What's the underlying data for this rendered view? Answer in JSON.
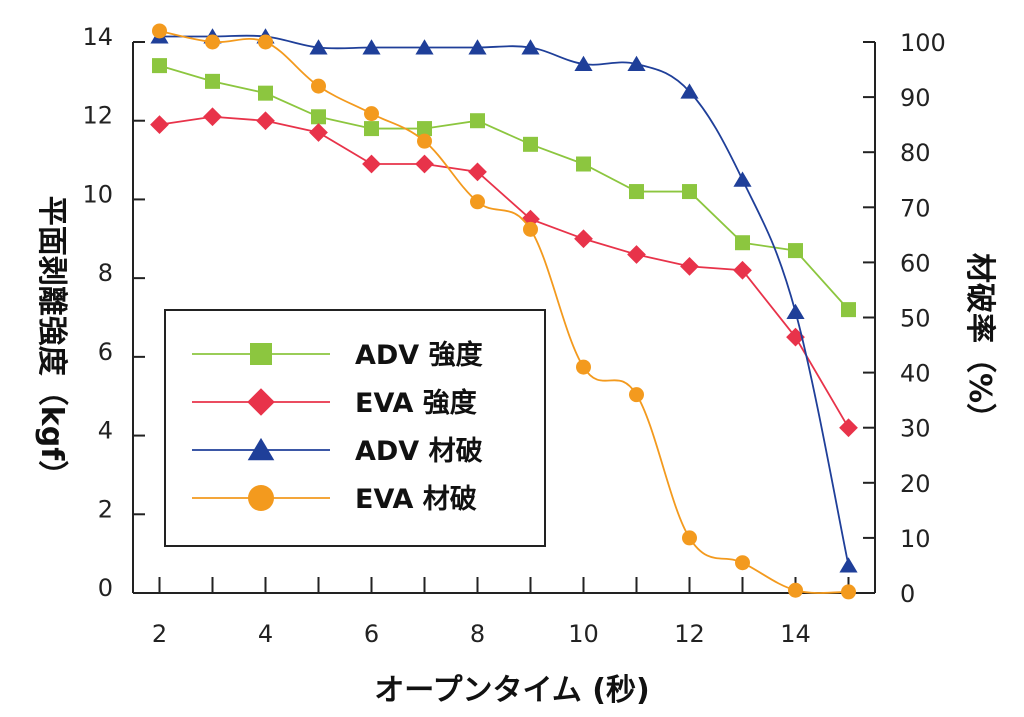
{
  "chart_data": {
    "type": "line",
    "xlabel": "オープンタイム (秒)",
    "ylabel_left": "平面剥離強度（kgf）",
    "ylabel_right": "材破率（%）",
    "xlim": [
      1.5,
      15.5
    ],
    "ylim_left": [
      0,
      14
    ],
    "ylim_right": [
      0,
      100
    ],
    "x_ticks": [
      "2",
      "4",
      "6",
      "8",
      "10",
      "12",
      "14"
    ],
    "y_left_ticks": [
      "0",
      "2",
      "4",
      "6",
      "8",
      "10",
      "12",
      "14"
    ],
    "y_right_ticks": [
      "0",
      "10",
      "20",
      "30",
      "40",
      "50",
      "60",
      "70",
      "80",
      "90",
      "100"
    ],
    "grid": false,
    "legend_position": "inside-left",
    "series": [
      {
        "name": "ADV 強度",
        "axis": "left",
        "color": "#8cc63f",
        "marker": "square",
        "x": [
          2,
          3,
          4,
          5,
          6,
          7,
          8,
          9,
          10,
          11,
          12,
          13,
          14,
          15
        ],
        "y": [
          13.4,
          13.0,
          12.7,
          12.1,
          11.8,
          11.8,
          12.0,
          11.4,
          10.9,
          10.2,
          10.2,
          8.9,
          8.7,
          7.2
        ]
      },
      {
        "name": "EVA 強度",
        "axis": "left",
        "color": "#e8334a",
        "marker": "diamond",
        "x": [
          2,
          3,
          4,
          5,
          6,
          7,
          8,
          9,
          10,
          11,
          12,
          13,
          14,
          15
        ],
        "y": [
          11.9,
          12.1,
          12.0,
          11.7,
          10.9,
          10.9,
          10.7,
          9.5,
          9.0,
          8.6,
          8.3,
          8.2,
          6.5,
          4.2
        ]
      },
      {
        "name": "ADV 材破",
        "axis": "right",
        "color": "#1f3f99",
        "marker": "triangle",
        "x": [
          2,
          3,
          4,
          5,
          6,
          7,
          8,
          9,
          10,
          11,
          12,
          13,
          14,
          15
        ],
        "y": [
          101,
          101,
          101,
          99,
          99,
          99,
          99,
          99,
          96,
          96,
          91,
          75,
          51,
          5
        ]
      },
      {
        "name": "EVA 材破",
        "axis": "right",
        "color": "#f39a1e",
        "marker": "circle",
        "x": [
          2,
          3,
          4,
          5,
          6,
          7,
          8,
          9,
          10,
          11,
          12,
          13,
          14,
          15
        ],
        "y": [
          102,
          100,
          100,
          92,
          87,
          82,
          71,
          66,
          41,
          36,
          10,
          5.5,
          0.5,
          0.2
        ]
      }
    ]
  }
}
